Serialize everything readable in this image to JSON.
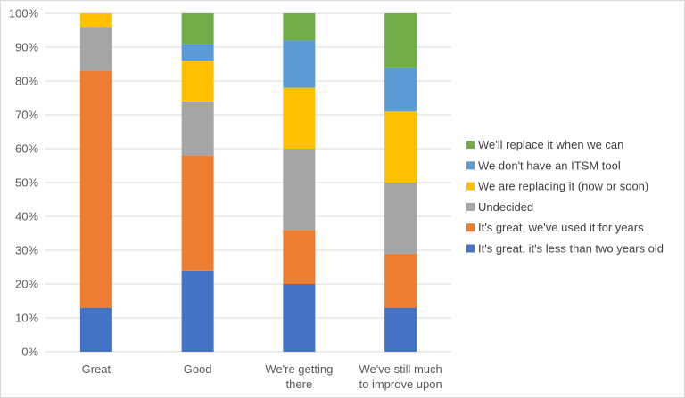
{
  "chart_data": {
    "type": "bar",
    "stacked": true,
    "normalized": true,
    "categories": [
      [
        "Great"
      ],
      [
        "Good"
      ],
      [
        "We're getting",
        "there"
      ],
      [
        "We've still much",
        "to improve upon"
      ]
    ],
    "series": [
      {
        "name": "It's great, it's less than two years old",
        "color": "#4472C4",
        "values": [
          13,
          24,
          20,
          13
        ]
      },
      {
        "name": "It's great, we've used it for years",
        "color": "#ED7D31",
        "values": [
          70,
          34,
          16,
          16
        ]
      },
      {
        "name": "Undecided",
        "color": "#A5A5A5",
        "values": [
          13,
          16,
          24,
          21
        ]
      },
      {
        "name": "We are replacing it (now or soon)",
        "color": "#FFC000",
        "values": [
          4,
          12,
          18,
          21
        ]
      },
      {
        "name": "We don't have an ITSM tool",
        "color": "#5B9BD5",
        "values": [
          0,
          5,
          14,
          13
        ]
      },
      {
        "name": "We'll replace it when we can",
        "color": "#70AD47",
        "values": [
          0,
          9,
          8,
          16
        ]
      }
    ],
    "y_ticks": [
      "0%",
      "10%",
      "20%",
      "30%",
      "40%",
      "50%",
      "60%",
      "70%",
      "80%",
      "90%",
      "100%"
    ],
    "ylim": [
      0,
      100
    ],
    "legend_position": "right",
    "grid": true
  }
}
